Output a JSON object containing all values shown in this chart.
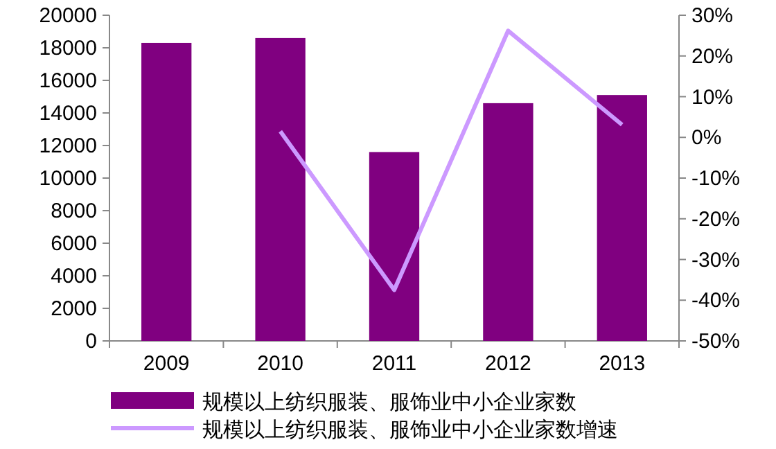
{
  "chart_data": {
    "type": "bar",
    "categories": [
      "2009",
      "2010",
      "2011",
      "2012",
      "2013"
    ],
    "series": [
      {
        "name": "规模以上纺织服装、服饰业中小企业家数",
        "color": "#800080",
        "values": [
          18300,
          18600,
          11600,
          14600,
          15100
        ]
      },
      {
        "name": "规模以上纺织服装、服饰业中小企业家数增速",
        "type": "line",
        "axis": "y2",
        "color": "#cc99ff",
        "values": [
          null,
          1.5,
          -37.5,
          26.2,
          3.1
        ]
      }
    ],
    "ylim": [
      0,
      20000
    ],
    "yticks": [
      0,
      2000,
      4000,
      6000,
      8000,
      10000,
      12000,
      14000,
      16000,
      18000,
      20000
    ],
    "y2lim": [
      -50,
      30
    ],
    "y2ticks": [
      {
        "value": -50,
        "label": "-50%"
      },
      {
        "value": -40,
        "label": "-40%"
      },
      {
        "value": -30,
        "label": "-30%"
      },
      {
        "value": -20,
        "label": "-20%"
      },
      {
        "value": -10,
        "label": "-10%"
      },
      {
        "value": 0,
        "label": "0%"
      },
      {
        "value": 10,
        "label": "10%"
      },
      {
        "value": 20,
        "label": "20%"
      },
      {
        "value": 30,
        "label": "30%"
      }
    ],
    "legend": "bottom",
    "grid": false,
    "marker": "none"
  }
}
